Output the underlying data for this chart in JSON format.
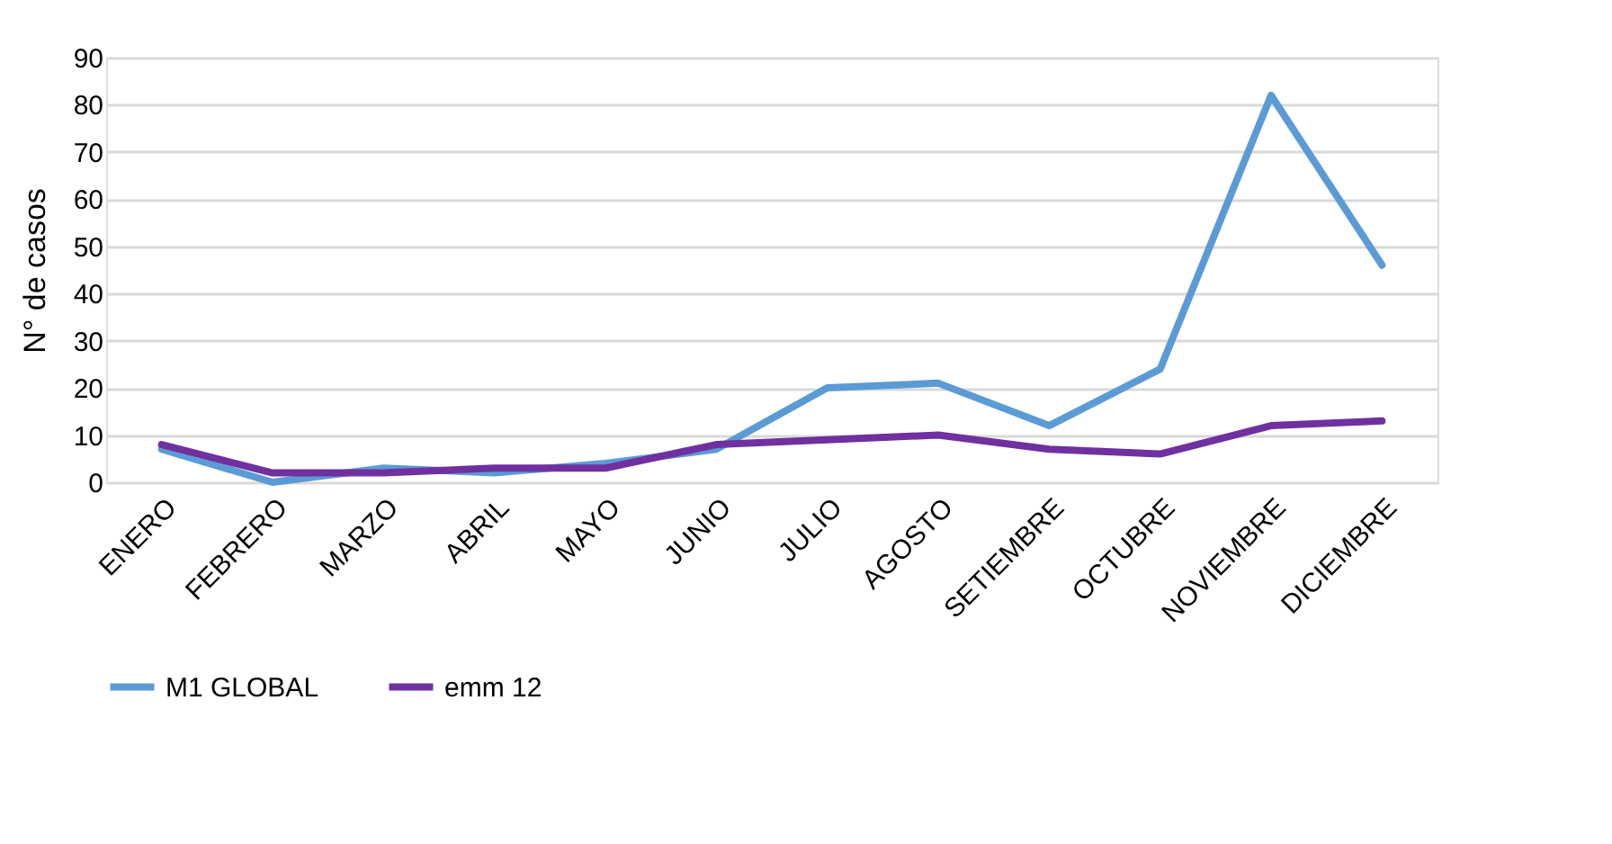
{
  "chart_data": {
    "type": "line",
    "ylabel": "N° de casos",
    "categories": [
      "ENERO",
      "FEBRERO",
      "MARZO",
      "ABRIL",
      "MAYO",
      "JUNIO",
      "JULIO",
      "AGOSTO",
      "SETIEMBRE",
      "OCTUBRE",
      "NOVIEMBRE",
      "DICIEMBRE"
    ],
    "series": [
      {
        "name": "M1 GLOBAL",
        "color": "#5b9bd5",
        "values": [
          7,
          0,
          3,
          2,
          4,
          7,
          20,
          21,
          12,
          24,
          82,
          46
        ]
      },
      {
        "name": "emm 12",
        "color": "#7030a0",
        "values": [
          8,
          2,
          2,
          3,
          3,
          8,
          9,
          10,
          7,
          6,
          12,
          13
        ]
      }
    ],
    "ylim": [
      0,
      90
    ],
    "yticks": [
      0,
      10,
      20,
      30,
      40,
      50,
      60,
      70,
      80,
      90
    ],
    "grid": "y",
    "legend": "bottom",
    "marker": "none",
    "line_style": "solid"
  }
}
